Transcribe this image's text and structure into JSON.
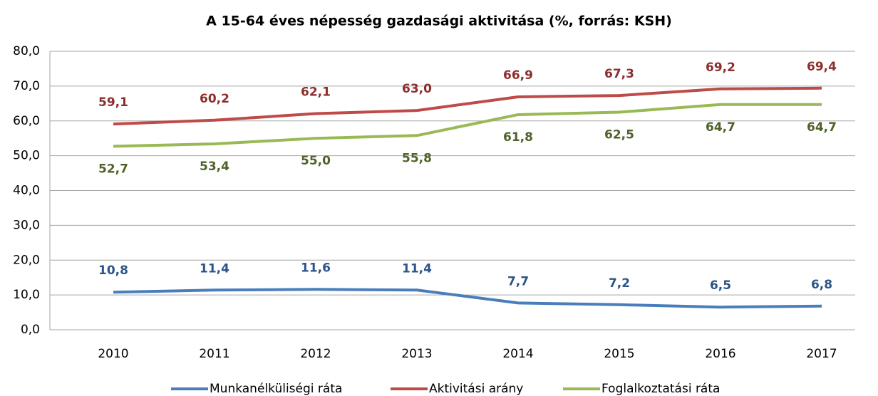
{
  "chart_data": {
    "type": "line",
    "title": "A 15-64 éves népesség gazdasági aktivitása (%, forrás: KSH)",
    "categories": [
      "2010",
      "2011",
      "2012",
      "2013",
      "2014",
      "2015",
      "2016",
      "2017"
    ],
    "series": [
      {
        "name": "Munkanélküliségi ráta",
        "color": "#4a7ebb",
        "label_color": "#2b5487",
        "label_position": "above",
        "values": [
          10.8,
          11.4,
          11.6,
          11.4,
          7.7,
          7.2,
          6.5,
          6.8
        ],
        "value_labels": [
          "10,8",
          "11,4",
          "11,6",
          "11,4",
          "7,7",
          "7,2",
          "6,5",
          "6,8"
        ]
      },
      {
        "name": "Aktivitási arány",
        "color": "#be4b48",
        "label_color": "#8c2e2c",
        "label_position": "above",
        "values": [
          59.1,
          60.2,
          62.1,
          63.0,
          66.9,
          67.3,
          69.2,
          69.4
        ],
        "value_labels": [
          "59,1",
          "60,2",
          "62,1",
          "63,0",
          "66,9",
          "67,3",
          "69,2",
          "69,4"
        ]
      },
      {
        "name": "Foglalkoztatási ráta",
        "color": "#98b954",
        "label_color": "#4f6228",
        "label_position": "below",
        "values": [
          52.7,
          53.4,
          55.0,
          55.8,
          61.8,
          62.5,
          64.7,
          64.7
        ],
        "value_labels": [
          "52,7",
          "53,4",
          "55,0",
          "55,8",
          "61,8",
          "62,5",
          "64,7",
          "64,7"
        ]
      }
    ],
    "ylim": [
      0,
      80
    ],
    "yticks": [
      {
        "value": 0,
        "label": "0,0"
      },
      {
        "value": 10,
        "label": "10,0"
      },
      {
        "value": 20,
        "label": "20,0"
      },
      {
        "value": 30,
        "label": "30,0"
      },
      {
        "value": 40,
        "label": "40,0"
      },
      {
        "value": 50,
        "label": "50,0"
      },
      {
        "value": 60,
        "label": "60,0"
      },
      {
        "value": 70,
        "label": "70,0"
      },
      {
        "value": 80,
        "label": "80,0"
      }
    ],
    "grid": true,
    "legend": "bottom"
  }
}
